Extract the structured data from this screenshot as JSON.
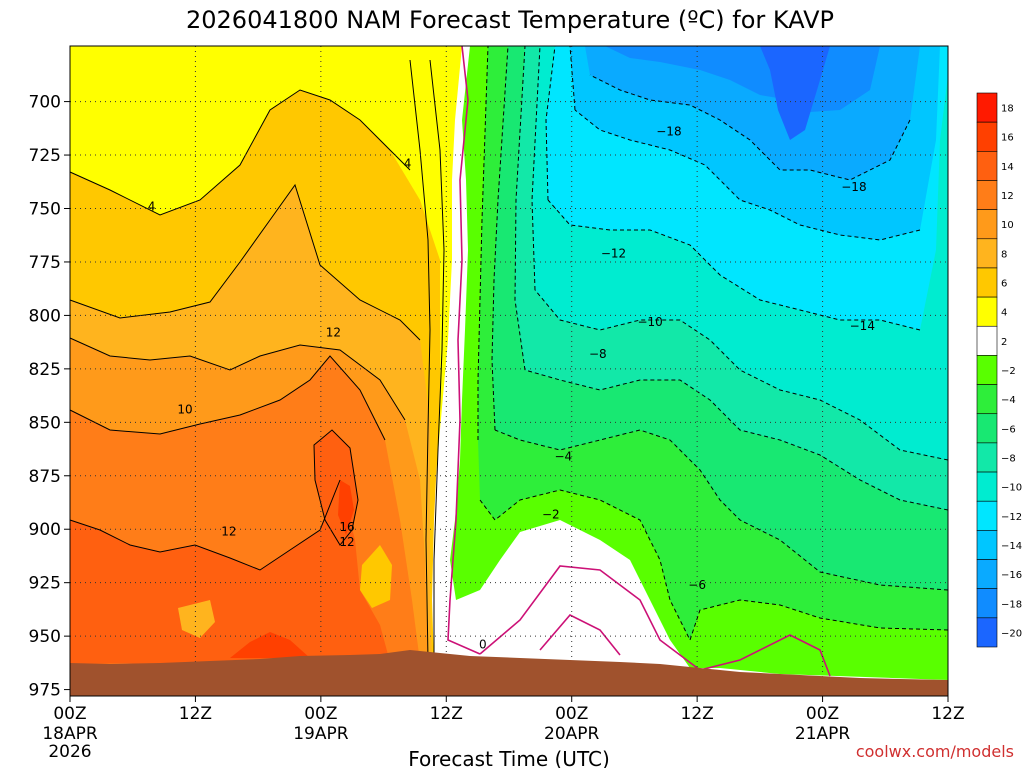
{
  "chart_data": {
    "type": "heatmap",
    "title": "2026041800 NAM Forecast Temperature (ºC) for KAVP",
    "xlabel": "Forecast Time (UTC)",
    "ylabel": "",
    "credit": "coolwx.com/models",
    "x_ticks": [
      {
        "hour": 0,
        "label": "00Z",
        "sub": "18APR",
        "sub2": "2026"
      },
      {
        "hour": 12,
        "label": "12Z",
        "sub": "",
        "sub2": ""
      },
      {
        "hour": 24,
        "label": "00Z",
        "sub": "19APR",
        "sub2": ""
      },
      {
        "hour": 36,
        "label": "12Z",
        "sub": "",
        "sub2": ""
      },
      {
        "hour": 48,
        "label": "00Z",
        "sub": "20APR",
        "sub2": ""
      },
      {
        "hour": 60,
        "label": "12Z",
        "sub": "",
        "sub2": ""
      },
      {
        "hour": 72,
        "label": "00Z",
        "sub": "21APR",
        "sub2": ""
      },
      {
        "hour": 84,
        "label": "12Z",
        "sub": "",
        "sub2": ""
      }
    ],
    "x_range_hours": [
      0,
      84
    ],
    "y_ticks": [
      700,
      725,
      750,
      775,
      800,
      825,
      850,
      875,
      900,
      925,
      950,
      975
    ],
    "y_range_hPa": [
      674,
      978
    ],
    "colorbar": {
      "levels": [
        "18",
        "16",
        "14",
        "12",
        "10",
        "8",
        "6",
        "4",
        "2",
        "−2",
        "−4",
        "−6",
        "−8",
        "−10",
        "−12",
        "−14",
        "−16",
        "−18",
        "−20"
      ],
      "colors": [
        "#ff1a00",
        "#ff4000",
        "#ff6010",
        "#ff7d18",
        "#ff9a1a",
        "#ffb41e",
        "#ffc800",
        "#ffff00",
        "#ffffff",
        "#59ff00",
        "#2eee3a",
        "#18e872",
        "#12e8a8",
        "#00ecd0",
        "#00e6ff",
        "#00c6ff",
        "#0aaaff",
        "#108cff",
        "#1b66ff"
      ]
    },
    "contour_labels": [
      {
        "text": "4",
        "hour": 32.3,
        "p": 729
      },
      {
        "text": "4",
        "hour": 7.8,
        "p": 749
      },
      {
        "text": "12",
        "hour": 25.2,
        "p": 808
      },
      {
        "text": "10",
        "hour": 11.0,
        "p": 844
      },
      {
        "text": "12",
        "hour": 15.2,
        "p": 901
      },
      {
        "text": "16",
        "hour": 26.5,
        "p": 899
      },
      {
        "text": "12",
        "hour": 26.5,
        "p": 906
      },
      {
        "text": "0",
        "hour": 39.5,
        "p": 954
      },
      {
        "text": "−18",
        "hour": 57.3,
        "p": 714
      },
      {
        "text": "−18",
        "hour": 75.0,
        "p": 740
      },
      {
        "text": "−12",
        "hour": 52.0,
        "p": 771
      },
      {
        "text": "−14",
        "hour": 75.8,
        "p": 805
      },
      {
        "text": "−10",
        "hour": 55.5,
        "p": 803
      },
      {
        "text": "−8",
        "hour": 50.5,
        "p": 818
      },
      {
        "text": "−4",
        "hour": 47.2,
        "p": 866
      },
      {
        "text": "−2",
        "hour": 46.0,
        "p": 893
      },
      {
        "text": "−6",
        "hour": 60.0,
        "p": 926
      }
    ],
    "color_regions": [
      {
        "name": "warm-2to4",
        "color": "#ffff00"
      },
      {
        "name": "warm-4to6",
        "color": "#ffc800"
      },
      {
        "name": "warm-6to8",
        "color": "#ffb41e"
      },
      {
        "name": "warm-8to10",
        "color": "#ff9a1a"
      },
      {
        "name": "warm-10to12",
        "color": "#ff7d18"
      },
      {
        "name": "warm-12to14",
        "color": "#ff6010"
      },
      {
        "name": "warm-14to16",
        "color": "#ff4000"
      },
      {
        "name": "cold-m2",
        "color": "#59ff00"
      },
      {
        "name": "cold-m4",
        "color": "#2eee3a"
      },
      {
        "name": "cold-m6",
        "color": "#18e872"
      },
      {
        "name": "cold-m8",
        "color": "#12e8a8"
      },
      {
        "name": "cold-m10",
        "color": "#00ecd0"
      },
      {
        "name": "cold-m12",
        "color": "#00e6ff"
      },
      {
        "name": "cold-m14",
        "color": "#00c6ff"
      },
      {
        "name": "cold-m16",
        "color": "#0aaaff"
      },
      {
        "name": "cold-m18",
        "color": "#108cff"
      },
      {
        "name": "cold-m20",
        "color": "#1b66ff"
      }
    ],
    "terrain_color": "#a0522d",
    "freezing_line_color": "#cc1177"
  }
}
